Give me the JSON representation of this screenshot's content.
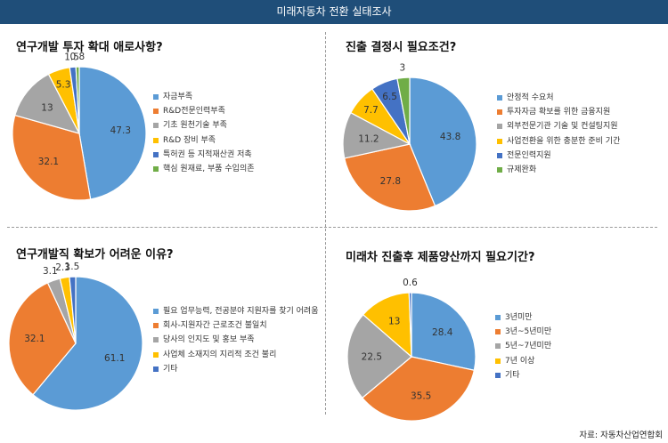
{
  "header": {
    "title": "미래자동차 전환 실태조사"
  },
  "source": "자료: 자동차산업연합회",
  "colors": {
    "palette": [
      "#5b9bd5",
      "#ed7d31",
      "#a5a5a5",
      "#ffc000",
      "#4472c4",
      "#70ad47"
    ],
    "header_bg": "#1f4e79"
  },
  "chart_data": [
    {
      "type": "pie",
      "title": "연구개발 투자 확대 애로사항?",
      "categories": [
        "자금부족",
        "R&D전문인력부족",
        "기초 원천기술 부족",
        "R&D 장비 부족",
        "특허권 등 지적재산권 저촉",
        "핵심 원재료, 부품 수입의존"
      ],
      "values": [
        47.3,
        32.1,
        13,
        5.3,
        1.5,
        0.8
      ],
      "labels": [
        "47.3",
        "32.1",
        "13",
        "5.3",
        "1.5",
        "0.8"
      ],
      "legend": "right"
    },
    {
      "type": "pie",
      "title": "진출 결정시 필요조건?",
      "categories": [
        "안정적 수요처",
        "투자자금 확보를 위한 금융지원",
        "외부전문기관 기술 및 컨설팅지원",
        "사업전환을 위한 충분한 준비 기간",
        "전문인력지원",
        "규제완화"
      ],
      "values": [
        43.8,
        27.8,
        11.2,
        7.7,
        6.5,
        3
      ],
      "labels": [
        "43.8",
        "27.8",
        "11.2",
        "7.7",
        "6.5",
        "3"
      ],
      "legend": "right"
    },
    {
      "type": "pie",
      "title": "연구개발직 확보가 어려운 이유?",
      "categories": [
        "필요 업무능력, 전공분야 지원자를 찾기 어려움",
        "회사-지원자간 근로조건 불일치",
        "당사의 인지도 및 홍보 부족",
        "사업체 소재지의 지리적 조건 불리",
        "기타"
      ],
      "values": [
        61.1,
        32.1,
        3.1,
        2.3,
        1.5
      ],
      "labels": [
        "61.1",
        "32.1",
        "3.1",
        "2.3",
        "1.5"
      ],
      "legend": "right"
    },
    {
      "type": "pie",
      "title": "미래차 진출후 제품양산까지 필요기간?",
      "categories": [
        "3년미만",
        "3년~5년미만",
        "5년~7년미만",
        "7년 이상",
        "기타"
      ],
      "values": [
        28.4,
        35.5,
        22.5,
        13,
        0.6
      ],
      "labels": [
        "28.4",
        "35.5",
        "22.5",
        "13",
        "0.6"
      ],
      "legend": "right"
    }
  ]
}
